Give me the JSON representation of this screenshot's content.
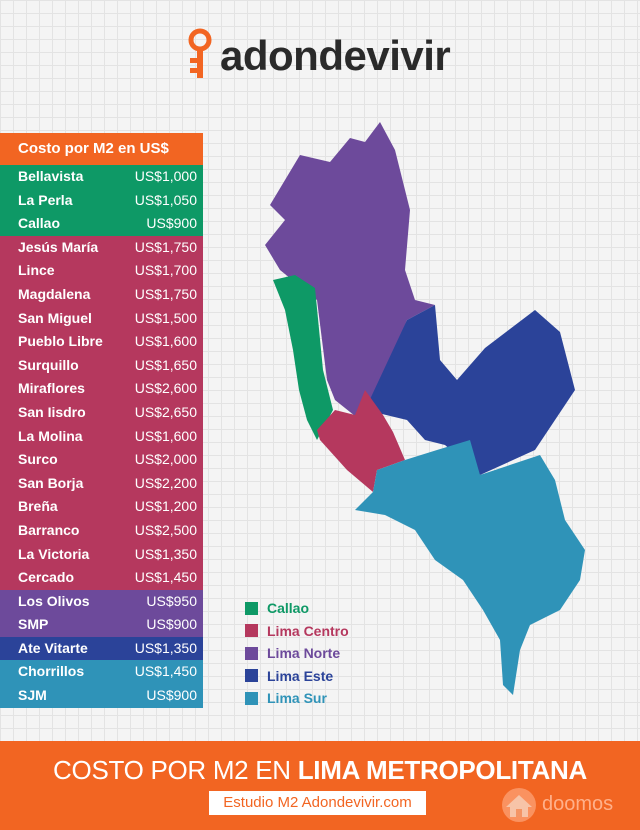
{
  "brand": {
    "logo_text": "adondevivir",
    "logo_icon": "key-pin-icon",
    "accent": "#f26522"
  },
  "table": {
    "header": "Costo por M2 en US$",
    "rows": [
      {
        "name": "Bellavista",
        "price": "US$1,000",
        "region": "callao"
      },
      {
        "name": "La Perla",
        "price": "US$1,050",
        "region": "callao"
      },
      {
        "name": "Callao",
        "price": "US$900",
        "region": "callao"
      },
      {
        "name": "Jesús María",
        "price": "US$1,750",
        "region": "centro"
      },
      {
        "name": "Lince",
        "price": "US$1,700",
        "region": "centro"
      },
      {
        "name": "Magdalena",
        "price": "US$1,750",
        "region": "centro"
      },
      {
        "name": "San Miguel",
        "price": "US$1,500",
        "region": "centro"
      },
      {
        "name": "Pueblo Libre",
        "price": "US$1,600",
        "region": "centro"
      },
      {
        "name": "Surquillo",
        "price": "US$1,650",
        "region": "centro"
      },
      {
        "name": "Miraflores",
        "price": "US$2,600",
        "region": "centro"
      },
      {
        "name": "San Iisdro",
        "price": "US$2,650",
        "region": "centro"
      },
      {
        "name": "La Molina",
        "price": "US$1,600",
        "region": "centro"
      },
      {
        "name": "Surco",
        "price": "US$2,000",
        "region": "centro"
      },
      {
        "name": "San Borja",
        "price": "US$2,200",
        "region": "centro"
      },
      {
        "name": "Breña",
        "price": "US$1,200",
        "region": "centro"
      },
      {
        "name": "Barranco",
        "price": "US$2,500",
        "region": "centro"
      },
      {
        "name": "La Victoria",
        "price": "US$1,350",
        "region": "centro"
      },
      {
        "name": "Cercado",
        "price": "US$1,450",
        "region": "centro"
      },
      {
        "name": "Los Olivos",
        "price": "US$950",
        "region": "norte"
      },
      {
        "name": "SMP",
        "price": "US$900",
        "region": "norte"
      },
      {
        "name": "Ate Vitarte",
        "price": "US$1,350",
        "region": "este"
      },
      {
        "name": "Chorrillos",
        "price": "US$1,450",
        "region": "sur"
      },
      {
        "name": "SJM",
        "price": "US$900",
        "region": "sur"
      }
    ]
  },
  "legend": [
    {
      "key": "callao",
      "label": "Callao",
      "color": "#0e9966"
    },
    {
      "key": "centro",
      "label": "Lima Centro",
      "color": "#b5385e"
    },
    {
      "key": "norte",
      "label": "Lima Norte",
      "color": "#6d4a9b"
    },
    {
      "key": "este",
      "label": "Lima Este",
      "color": "#2b4399"
    },
    {
      "key": "sur",
      "label": "Lima Sur",
      "color": "#2f93b8"
    }
  ],
  "footer": {
    "title_plain": "COSTO POR M2 EN ",
    "title_bold": "LIMA METROPOLITANA",
    "badge": "Estudio M2 Adondevivir.com",
    "doomos_text": "doomos",
    "doomos_icon": "house-icon"
  }
}
